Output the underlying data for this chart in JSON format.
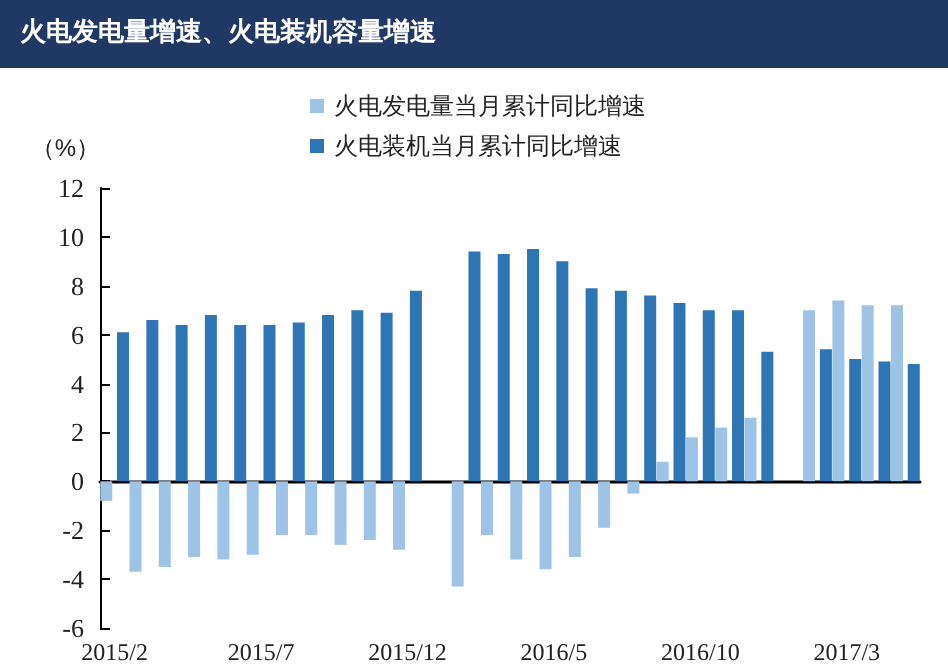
{
  "chart_data": {
    "type": "bar",
    "title": "火电发电量增速、火电装机容量增速",
    "ylabel": "（%）",
    "categories": [
      "2015/2",
      null,
      null,
      null,
      null,
      "2015/7",
      null,
      null,
      null,
      null,
      "2015/12",
      null,
      null,
      null,
      null,
      "2016/5",
      null,
      null,
      null,
      null,
      "2016/10",
      null,
      null,
      null,
      null,
      "2017/3",
      null,
      null
    ],
    "series": [
      {
        "name": "火电发电量当月累计同比增速",
        "color": "#9dc3e6",
        "values": [
          -0.8,
          -3.7,
          -3.5,
          -3.1,
          -3.2,
          -3.0,
          -2.2,
          -2.2,
          -2.6,
          -2.4,
          -2.8,
          null,
          -4.3,
          -2.2,
          -3.2,
          -3.6,
          -3.1,
          -1.9,
          -0.5,
          0.8,
          1.8,
          2.2,
          2.6,
          null,
          7.0,
          7.4,
          7.2,
          7.2
        ]
      },
      {
        "name": "火电装机当月累计同比增速",
        "color": "#2e75b6",
        "values": [
          6.1,
          6.6,
          6.4,
          6.8,
          6.4,
          6.4,
          6.5,
          6.8,
          7.0,
          6.9,
          7.8,
          null,
          9.4,
          9.3,
          9.5,
          9.0,
          7.9,
          7.8,
          7.6,
          7.3,
          7.0,
          7.0,
          5.3,
          null,
          5.4,
          5.0,
          4.9,
          4.8
        ]
      }
    ],
    "ylim": [
      -6,
      12
    ],
    "yticks": [
      -6,
      -4,
      -2,
      0,
      2,
      4,
      6,
      8,
      10,
      12
    ],
    "legend": "top"
  }
}
